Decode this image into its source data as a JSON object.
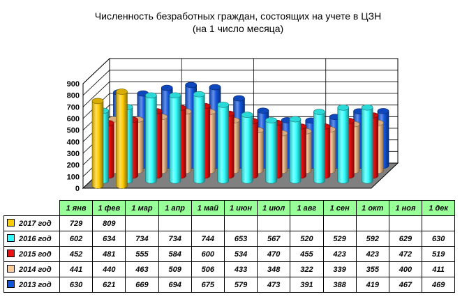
{
  "chart_data": {
    "type": "bar",
    "title": "Численность безработных граждан, состоящих на учете в ЦЗН",
    "subtitle": "(на 1 число месяца)",
    "categories": [
      "1 янв",
      "1 фев",
      "1 мар",
      "1 апр",
      "1 май",
      "1 июн",
      "1 июл",
      "1 авг",
      "1 сен",
      "1 окт",
      "1 ноя",
      "1 дек"
    ],
    "ylim": [
      0,
      900
    ],
    "yticks": [
      0,
      100,
      200,
      300,
      400,
      500,
      600,
      700,
      800,
      900
    ],
    "grid": true,
    "legend": "in data table",
    "series": [
      {
        "name": "2017 год",
        "color": "#ffcc00",
        "values": [
          729,
          809,
          null,
          null,
          null,
          null,
          null,
          null,
          null,
          null,
          null,
          null
        ]
      },
      {
        "name": "2016 год",
        "color": "#33ffff",
        "values": [
          602,
          634,
          734,
          734,
          744,
          653,
          567,
          520,
          529,
          592,
          629,
          630
        ]
      },
      {
        "name": "2015 год",
        "color": "#ee1111",
        "values": [
          452,
          481,
          555,
          584,
          600,
          534,
          470,
          455,
          423,
          423,
          472,
          519
        ]
      },
      {
        "name": "2014 год",
        "color": "#ffcc99",
        "values": [
          441,
          440,
          463,
          509,
          506,
          433,
          348,
          322,
          339,
          355,
          400,
          411
        ]
      },
      {
        "name": "2013 год",
        "color": "#1155dd",
        "values": [
          630,
          621,
          669,
          694,
          675,
          579,
          473,
          391,
          388,
          419,
          467,
          469
        ]
      }
    ],
    "table_rows": [
      {
        "label": "2017 год",
        "cells": [
          "729",
          "809",
          "",
          "",
          "",
          "",
          "",
          "",
          "",
          "",
          "",
          ""
        ]
      },
      {
        "label": "2016 год",
        "cells": [
          "602",
          "634",
          "734",
          "734",
          "744",
          "653",
          "567",
          "520",
          "529",
          "592",
          "629",
          "630"
        ]
      },
      {
        "label": "2015 год",
        "cells": [
          "452",
          "481",
          "555",
          "584",
          "600",
          "534",
          "470",
          "455",
          "423",
          "423",
          "472",
          "519"
        ]
      },
      {
        "label": "2014 год",
        "cells": [
          "441",
          "440",
          "463",
          "509",
          "506",
          "433",
          "348",
          "322",
          "339",
          "355",
          "400",
          "411"
        ]
      },
      {
        "label": "2013 год",
        "cells": [
          "630",
          "621",
          "669",
          "694",
          "675",
          "579",
          "473",
          "391",
          "388",
          "419",
          "467",
          "469"
        ]
      }
    ]
  },
  "colors": {
    "wall": "#ffffff",
    "floor": "#808080",
    "table_header": "#99ff99"
  }
}
